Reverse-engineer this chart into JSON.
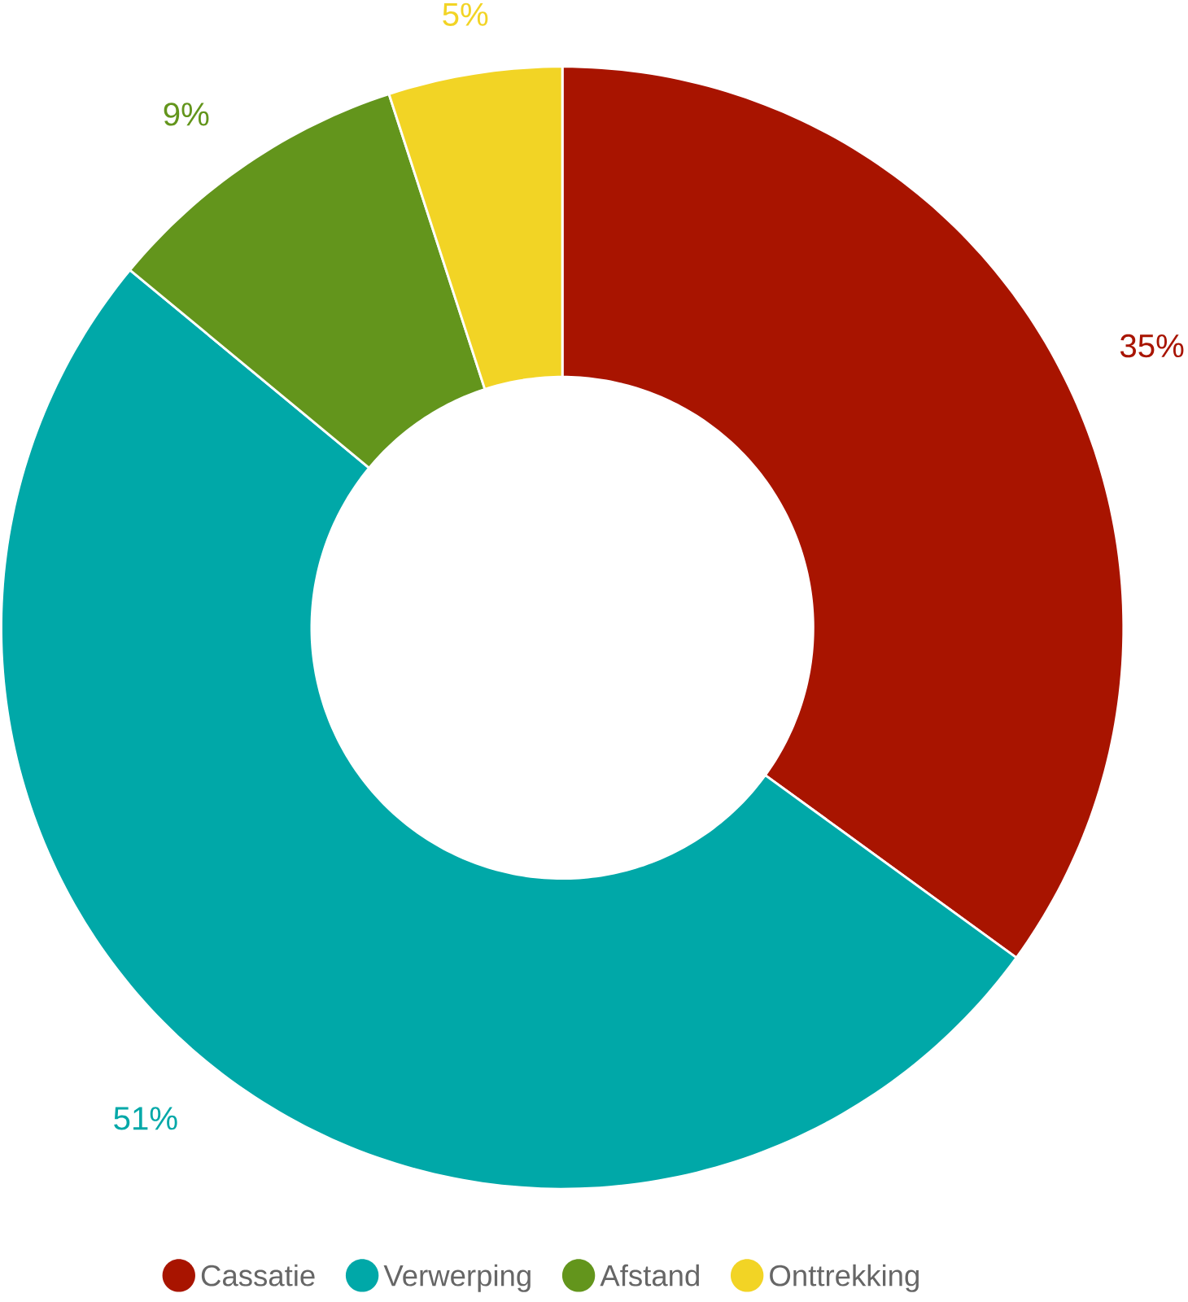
{
  "chart_data": {
    "type": "donut",
    "categories": [
      "Cassatie",
      "Verwerping",
      "Afstand",
      "Onttrekking"
    ],
    "values": [
      35,
      51,
      9,
      5
    ],
    "value_labels": [
      "35%",
      "51%",
      "9%",
      "5%"
    ],
    "colors": [
      "#a81400",
      "#00a8a8",
      "#63951c",
      "#f2d425"
    ],
    "legend": "bottom"
  }
}
